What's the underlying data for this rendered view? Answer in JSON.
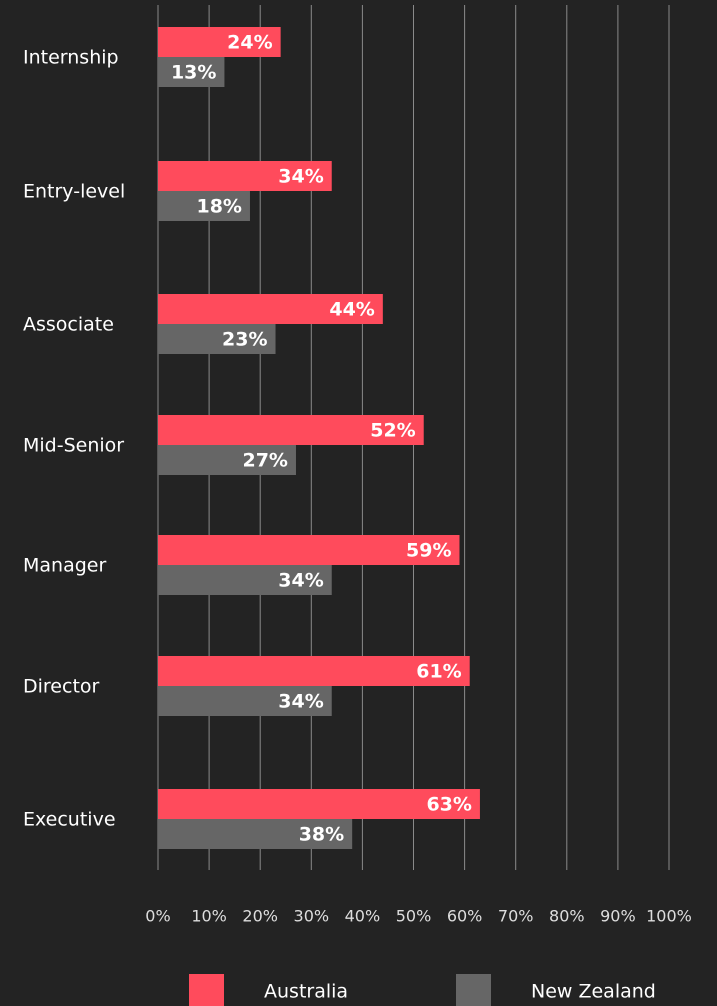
{
  "chart_data": {
    "type": "bar",
    "orientation": "horizontal",
    "categories": [
      "Internship",
      "Entry-level",
      "Associate",
      "Mid-Senior",
      "Manager",
      "Director",
      "Executive"
    ],
    "series": [
      {
        "name": "Australia",
        "color": "#ff4b5c",
        "values": [
          24,
          34,
          44,
          52,
          59,
          61,
          63
        ],
        "value_labels": [
          "24%",
          "34%",
          "44%",
          "52%",
          "59%",
          "61%",
          "63%"
        ]
      },
      {
        "name": "New Zealand",
        "color": "#666666",
        "values": [
          13,
          18,
          23,
          27,
          34,
          34,
          38
        ],
        "value_labels": [
          "13%",
          "18%",
          "23%",
          "27%",
          "34%",
          "34%",
          "38%"
        ]
      }
    ],
    "xlim": [
      0,
      100
    ],
    "xticks": [
      {
        "value": 0,
        "label": "0%"
      },
      {
        "value": 10,
        "label": "10%"
      },
      {
        "value": 20,
        "label": "20%"
      },
      {
        "value": 30,
        "label": "30%"
      },
      {
        "value": 40,
        "label": "40%"
      },
      {
        "value": 50,
        "label": "50%"
      },
      {
        "value": 60,
        "label": "60%"
      },
      {
        "value": 70,
        "label": "70%"
      },
      {
        "value": 80,
        "label": "80%"
      },
      {
        "value": 90,
        "label": "90%"
      },
      {
        "value": 100,
        "label": "100%"
      }
    ],
    "grid": true,
    "legend": "bottom"
  }
}
